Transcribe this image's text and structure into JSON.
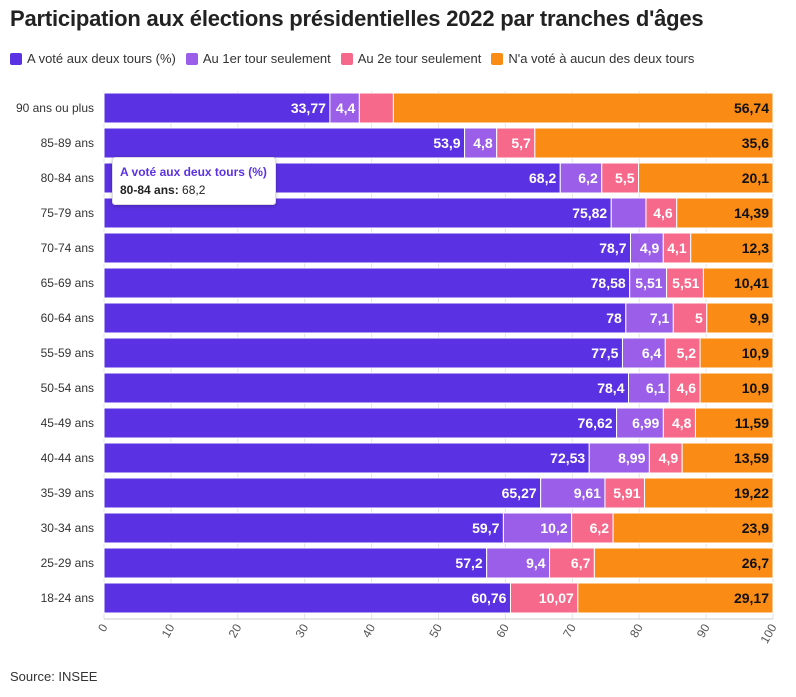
{
  "title": "Participation aux élections présidentielles 2022 par tranches d'âges",
  "source": "Source: INSEE",
  "colors": {
    "deux_tours": "#5b32e3",
    "premier_tour": "#9a5ee8",
    "second_tour": "#f7698a",
    "aucun": "#fa8c16"
  },
  "tooltip": {
    "series": "A voté aux deux tours (%)",
    "category": "80-84 ans:",
    "value": "68,2"
  },
  "chart_data": {
    "type": "bar",
    "orientation": "horizontal",
    "stacked": true,
    "title": "Participation aux élections présidentielles 2022 par tranches d'âges",
    "categories": [
      "90 ans ou plus",
      "85-89 ans",
      "80-84 ans",
      "75-79 ans",
      "70-74 ans",
      "65-69 ans",
      "60-64 ans",
      "55-59 ans",
      "50-54 ans",
      "45-49 ans",
      "40-44 ans",
      "35-39 ans",
      "30-34 ans",
      "25-29 ans",
      "18-24 ans"
    ],
    "series": [
      {
        "name": "A voté aux deux tours (%)",
        "color": "#5b32e3",
        "values": [
          33.77,
          53.9,
          68.2,
          75.82,
          78.7,
          78.58,
          78,
          77.5,
          78.4,
          76.62,
          72.53,
          65.27,
          59.7,
          57.2,
          60.76
        ]
      },
      {
        "name": "Au 1er tour seulement",
        "color": "#9a5ee8",
        "values": [
          4.4,
          4.8,
          6.2,
          null,
          4.9,
          5.51,
          7.1,
          6.4,
          6.1,
          6.99,
          8.99,
          9.61,
          10.2,
          9.4,
          null
        ]
      },
      {
        "name": "Au 2e tour seulement",
        "color": "#f7698a",
        "values": [
          null,
          5.7,
          5.5,
          4.6,
          4.1,
          5.51,
          5,
          5.2,
          4.6,
          4.8,
          4.9,
          5.91,
          6.2,
          6.7,
          10.07
        ]
      },
      {
        "name": "N'a voté à aucun des deux tours",
        "color": "#fa8c16",
        "values": [
          56.74,
          35.6,
          20.1,
          14.39,
          12.3,
          10.41,
          9.9,
          10.9,
          10.9,
          11.59,
          13.59,
          19.22,
          23.9,
          26.7,
          29.17
        ]
      }
    ],
    "segment_fraction_fallback": {
      "premier_tour": [
        38.17,
        null,
        null,
        81.4,
        null,
        null,
        null,
        null,
        null,
        null,
        null,
        null,
        null,
        null,
        66.83
      ]
    },
    "xlim": [
      0,
      100
    ],
    "xticks": [
      "0",
      "10",
      "20",
      "30",
      "40",
      "50",
      "60",
      "70",
      "80",
      "90",
      "100"
    ],
    "grid": true,
    "legend": "top-left"
  }
}
